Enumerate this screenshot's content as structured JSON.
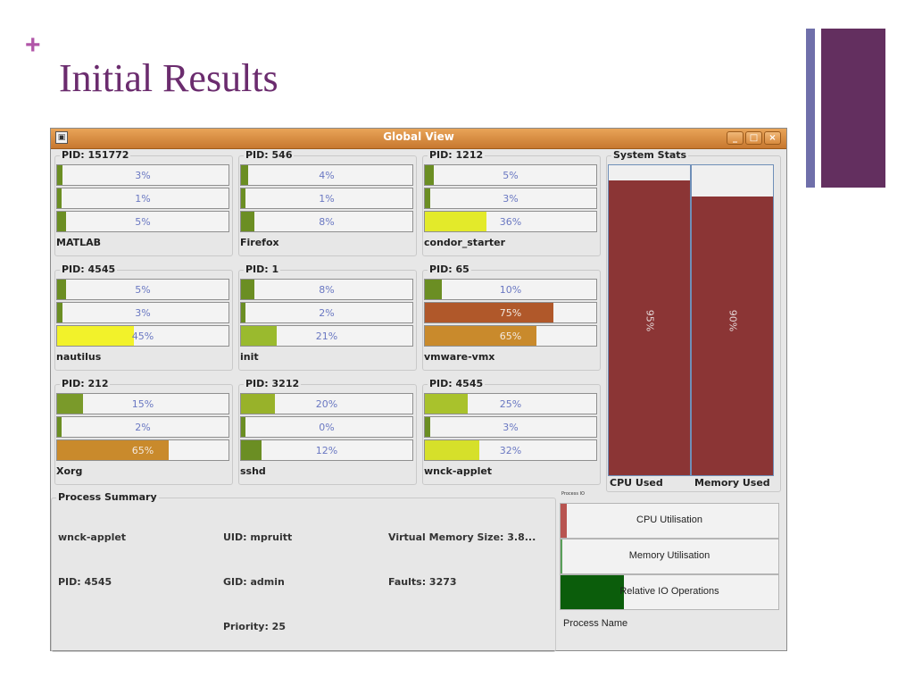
{
  "slide": {
    "plus": "+",
    "title": "Initial Results"
  },
  "window": {
    "title": "Global View"
  },
  "processes": [
    {
      "pid": "PID: 151772",
      "name": "MATLAB",
      "bars": [
        {
          "label": "3%",
          "value": 0.03,
          "color": "#6b8e23"
        },
        {
          "label": "1%",
          "value": 0.01,
          "color": "#6b8e23"
        },
        {
          "label": "5%",
          "value": 0.05,
          "color": "#6b8e23"
        }
      ]
    },
    {
      "pid": "PID: 546",
      "name": "Firefox",
      "bars": [
        {
          "label": "4%",
          "value": 0.04,
          "color": "#6b8e23"
        },
        {
          "label": "1%",
          "value": 0.01,
          "color": "#6b8e23"
        },
        {
          "label": "8%",
          "value": 0.08,
          "color": "#6b8e23"
        }
      ]
    },
    {
      "pid": "PID: 1212",
      "name": "condor_starter",
      "bars": [
        {
          "label": "5%",
          "value": 0.05,
          "color": "#6b8e23"
        },
        {
          "label": "3%",
          "value": 0.03,
          "color": "#6b8e23"
        },
        {
          "label": "36%",
          "value": 0.36,
          "color": "#e3ea2a"
        }
      ]
    },
    {
      "pid": "PID: 4545",
      "name": "nautilus",
      "bars": [
        {
          "label": "5%",
          "value": 0.05,
          "color": "#6b8e23"
        },
        {
          "label": "3%",
          "value": 0.03,
          "color": "#6b8e23"
        },
        {
          "label": "45%",
          "value": 0.45,
          "color": "#f2f22a"
        }
      ]
    },
    {
      "pid": "PID: 1",
      "name": "init",
      "bars": [
        {
          "label": "8%",
          "value": 0.08,
          "color": "#6b8e23"
        },
        {
          "label": "2%",
          "value": 0.02,
          "color": "#6b8e23"
        },
        {
          "label": "21%",
          "value": 0.21,
          "color": "#9aba2e"
        }
      ]
    },
    {
      "pid": "PID: 65",
      "name": "vmware-vmx",
      "bars": [
        {
          "label": "10%",
          "value": 0.1,
          "color": "#6b8e23"
        },
        {
          "label": "75%",
          "value": 0.75,
          "color": "#b0582a"
        },
        {
          "label": "65%",
          "value": 0.65,
          "color": "#c98a2c"
        }
      ]
    },
    {
      "pid": "PID: 212",
      "name": "Xorg",
      "bars": [
        {
          "label": "15%",
          "value": 0.15,
          "color": "#7a9a2a"
        },
        {
          "label": "2%",
          "value": 0.02,
          "color": "#6b8e23"
        },
        {
          "label": "65%",
          "value": 0.65,
          "color": "#c98a2c"
        }
      ]
    },
    {
      "pid": "PID: 3212",
      "name": "sshd",
      "bars": [
        {
          "label": "20%",
          "value": 0.2,
          "color": "#98b22a"
        },
        {
          "label": "0%",
          "value": 0.0,
          "color": "#6b8e23"
        },
        {
          "label": "12%",
          "value": 0.12,
          "color": "#6b8e23"
        }
      ]
    },
    {
      "pid": "PID: 4545",
      "name": "wnck-applet",
      "bars": [
        {
          "label": "25%",
          "value": 0.25,
          "color": "#a9c22c"
        },
        {
          "label": "3%",
          "value": 0.03,
          "color": "#6b8e23"
        },
        {
          "label": "32%",
          "value": 0.32,
          "color": "#d6e02a"
        }
      ]
    }
  ],
  "system_stats": {
    "title": "System Stats",
    "cpu": {
      "label": "CPU Used",
      "value": 0.95,
      "text": "95%"
    },
    "memory": {
      "label": "Memory Used",
      "value": 0.9,
      "text": "90%"
    }
  },
  "summary": {
    "title": "Process Summary",
    "name": "wnck-applet",
    "pid": "PID: 4545",
    "uid": "UID: mpruitt",
    "gid": "GID: admin",
    "priority": "Priority: 25",
    "vmem": "Virtual Memory Size: 3.8...",
    "faults": "Faults: 3273"
  },
  "graph": {
    "tiny_label": "Process IO",
    "bars": [
      {
        "label": "CPU Utilisation",
        "value": 0.03,
        "color": "#b85450"
      },
      {
        "label": "Memory Utilisation",
        "value": 0.008,
        "color": "#5aa05a"
      },
      {
        "label": "Relative IO Operations",
        "value": 0.29,
        "color": "#0b5d0b"
      }
    ],
    "process_name_label": "Process Name"
  }
}
